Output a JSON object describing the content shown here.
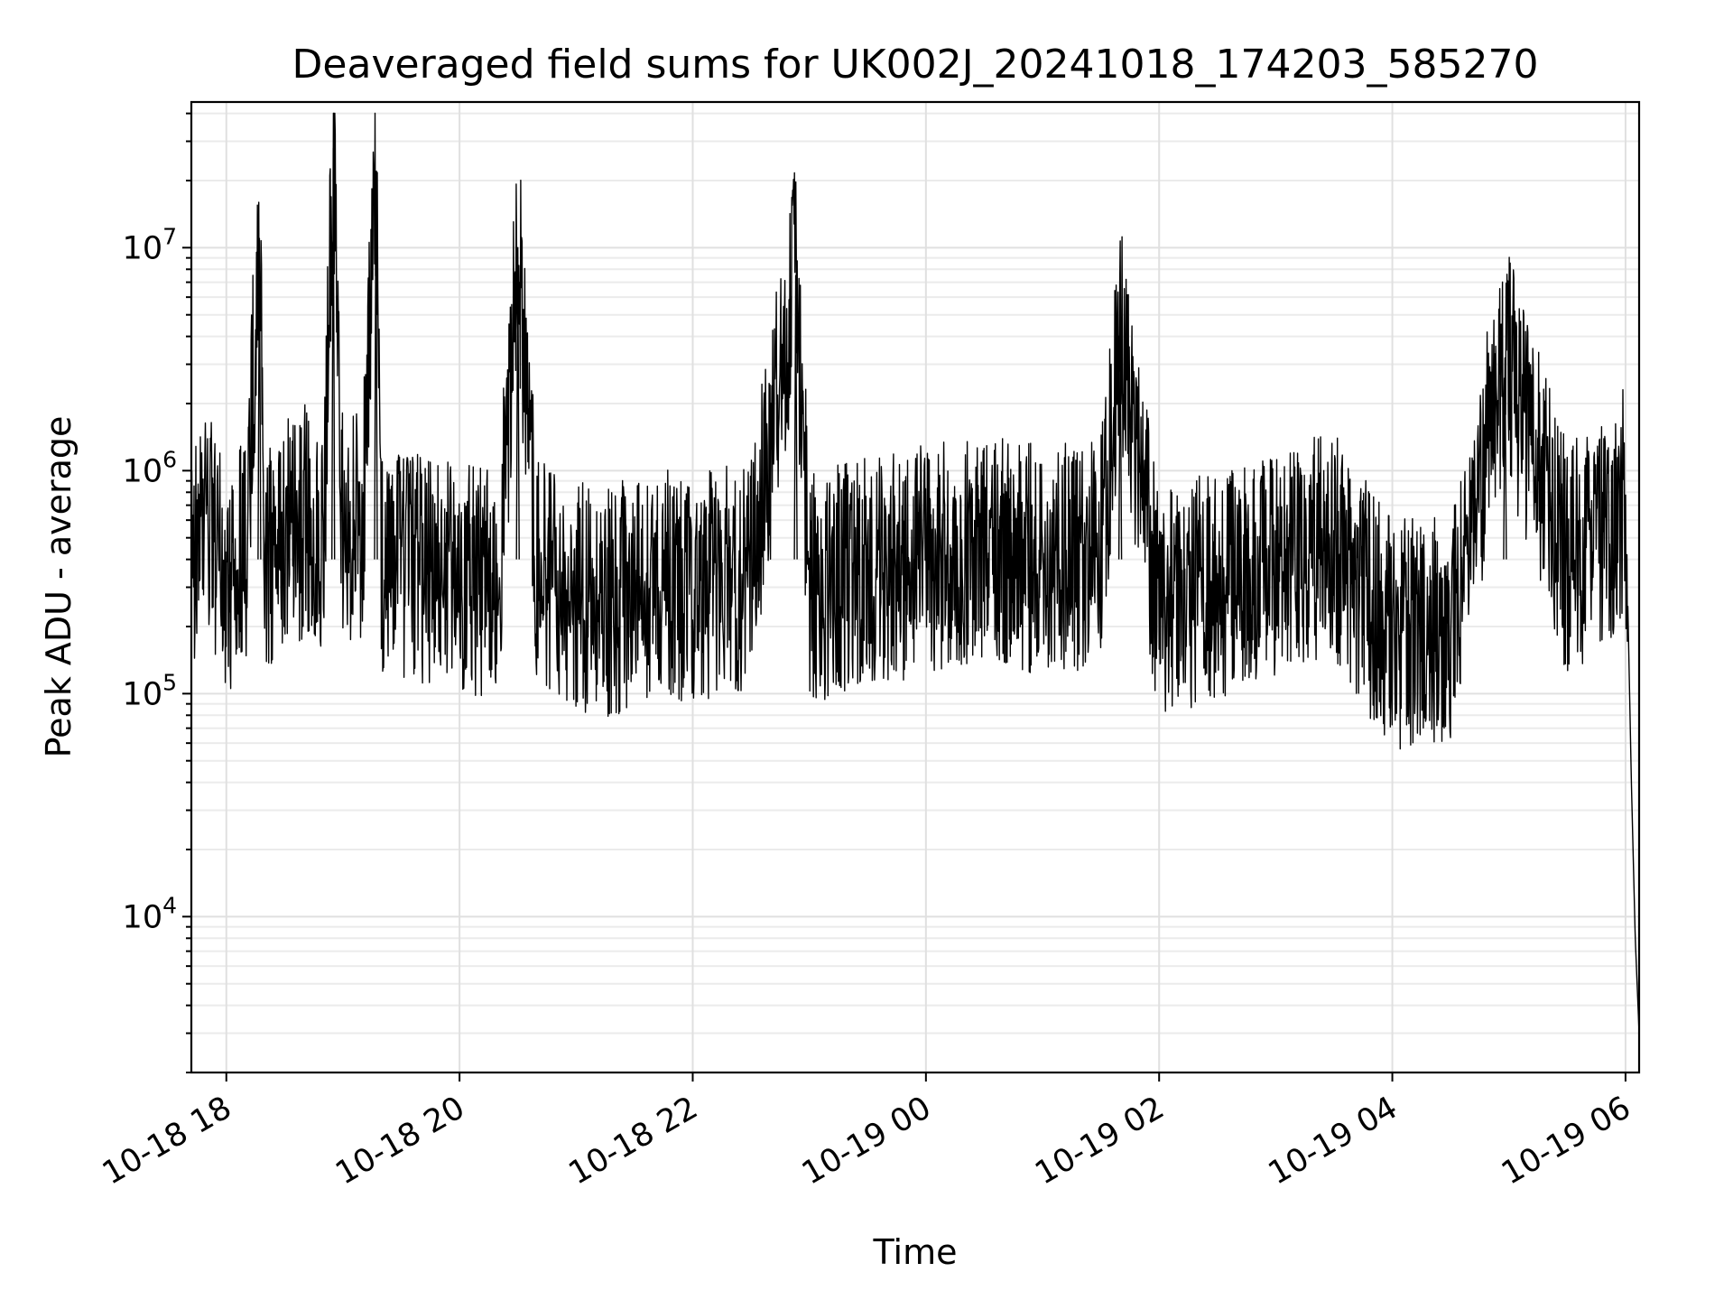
{
  "chart_data": {
    "type": "line",
    "title": "Deaveraged field sums for UK002J_20241018_174203_585270",
    "xlabel": "Time",
    "ylabel": "Peak ADU - average",
    "xscale": "time",
    "yscale": "log",
    "xlim": [
      "2024-10-18 17:42",
      "2024-10-19 06:07"
    ],
    "ylim": [
      2000,
      45000000
    ],
    "grid": true,
    "legend": "none",
    "line_color": "#000000",
    "x_ticks": [
      {
        "value": "2024-10-18 18:00",
        "label": "10-18 18"
      },
      {
        "value": "2024-10-18 20:00",
        "label": "10-18 20"
      },
      {
        "value": "2024-10-18 22:00",
        "label": "10-18 22"
      },
      {
        "value": "2024-10-19 00:00",
        "label": "10-19 00"
      },
      {
        "value": "2024-10-19 02:00",
        "label": "10-19 02"
      },
      {
        "value": "2024-10-19 04:00",
        "label": "10-19 04"
      },
      {
        "value": "2024-10-19 06:00",
        "label": "10-19 06"
      }
    ],
    "y_ticks": [
      {
        "value": 10000,
        "base": "10",
        "exp": "4"
      },
      {
        "value": 100000,
        "base": "10",
        "exp": "5"
      },
      {
        "value": 1000000,
        "base": "10",
        "exp": "6"
      },
      {
        "value": 10000000,
        "base": "10",
        "exp": "7"
      }
    ],
    "series": [
      {
        "x": [
          "2024-10-18 17:42",
          "2024-10-18 17:50",
          "2024-10-18 18:00",
          "2024-10-18 18:10",
          "2024-10-18 18:17",
          "2024-10-18 18:20",
          "2024-10-18 18:30",
          "2024-10-18 18:40",
          "2024-10-18 18:50",
          "2024-10-18 18:55",
          "2024-10-18 19:00",
          "2024-10-18 19:10",
          "2024-10-18 19:17",
          "2024-10-18 19:20",
          "2024-10-18 19:40",
          "2024-10-18 20:00",
          "2024-10-18 20:20",
          "2024-10-18 20:30",
          "2024-10-18 20:40",
          "2024-10-18 21:00",
          "2024-10-18 21:15",
          "2024-10-18 21:30",
          "2024-10-18 21:45",
          "2024-10-18 22:00",
          "2024-10-18 22:30",
          "2024-10-18 22:53",
          "2024-10-18 23:00",
          "2024-10-18 23:30",
          "2024-10-19 00:00",
          "2024-10-19 00:30",
          "2024-10-19 01:00",
          "2024-10-19 01:30",
          "2024-10-19 01:40",
          "2024-10-19 02:00",
          "2024-10-19 02:30",
          "2024-10-19 03:00",
          "2024-10-19 03:30",
          "2024-10-19 04:00",
          "2024-10-19 04:30",
          "2024-10-19 04:58",
          "2024-10-19 05:30",
          "2024-10-19 05:50",
          "2024-10-19 06:00",
          "2024-10-19 06:03",
          "2024-10-19 06:05",
          "2024-10-19 06:07"
        ],
        "y": [
          400000,
          600000,
          300000,
          450000,
          11000000,
          350000,
          500000,
          600000,
          500000,
          28000000,
          450000,
          600000,
          18000000,
          400000,
          350000,
          350000,
          300000,
          10000000,
          350000,
          280000,
          250000,
          300000,
          320000,
          300000,
          350000,
          7500000,
          300000,
          350000,
          400000,
          450000,
          400000,
          420000,
          4000000,
          250000,
          300000,
          400000,
          450000,
          180000,
          200000,
          3200000,
          400000,
          500000,
          800000,
          40000,
          8000,
          3000
        ]
      }
    ]
  }
}
